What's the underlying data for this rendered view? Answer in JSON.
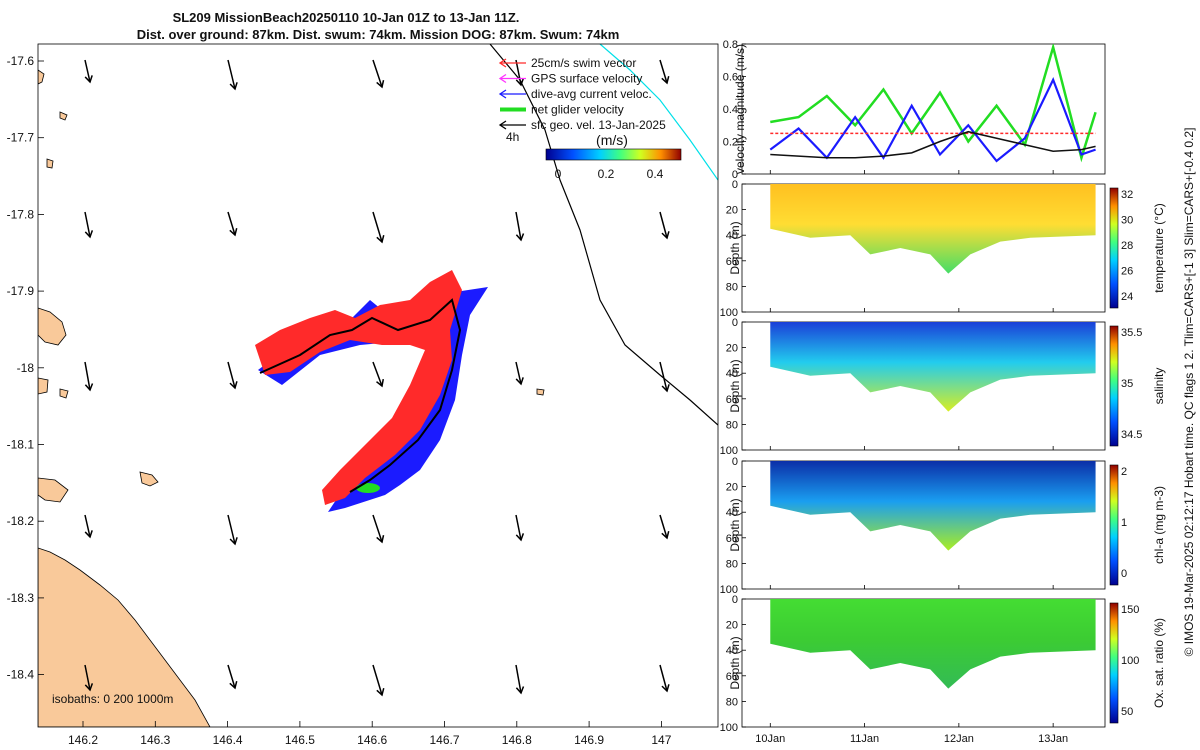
{
  "colors": {
    "land": "#f9c99a",
    "swim": "#ff2a2a",
    "gps": "#ff33ff",
    "dive": "#1b1bff",
    "net": "#22dd22",
    "geo": "#000000",
    "coast_line": "#00e0e8",
    "boundary_line": "#000000"
  },
  "map": {
    "title_line1": "SL209 MissionBeach20250110 10-Jan 01Z to 13-Jan 11Z.",
    "title_line2": "Dist. over ground: 87km. Dist. swum: 74km. Mission DOG: 87km. Swum: 74km",
    "x_ticks": [
      "146.2",
      "146.3",
      "146.4",
      "146.5",
      "146.6",
      "146.7",
      "146.8",
      "146.9",
      "147"
    ],
    "y_ticks": [
      "-17.6",
      "-17.7",
      "-17.8",
      "-17.9",
      "-18",
      "-18.1",
      "-18.2",
      "-18.3",
      "-18.4"
    ],
    "legend": [
      {
        "key": "swim",
        "label": "25cm/s swim vector"
      },
      {
        "key": "gps",
        "label": "GPS surface velocity"
      },
      {
        "key": "dive",
        "label": "dive-avg current veloc."
      },
      {
        "key": "net",
        "label": "net glider velocity"
      },
      {
        "key": "geo",
        "label": "sfc geo. vel. 13-Jan-2025"
      }
    ],
    "ref_arrow_label": "4h",
    "colorbar_title": "(m/s)",
    "colorbar_ticks": [
      "0",
      "0.2",
      "0.4"
    ],
    "isobaths_label": "isobaths: 0   200  1000m"
  },
  "chart_data": [
    {
      "type": "line",
      "title": "",
      "xlabel": "",
      "ylabel": "velocity magnitude (m/s)",
      "ylim": [
        0,
        0.8
      ],
      "yticks": [
        "0",
        "0.2",
        "0.4",
        "0.6",
        "0.8"
      ],
      "x_days": [
        10.0,
        10.3,
        10.6,
        10.9,
        11.2,
        11.5,
        11.8,
        12.1,
        12.4,
        12.7,
        13.0,
        13.3,
        13.45
      ],
      "series": [
        {
          "name": "net glider velocity",
          "color": "#22dd22",
          "values": [
            0.32,
            0.35,
            0.48,
            0.3,
            0.52,
            0.25,
            0.5,
            0.2,
            0.42,
            0.18,
            0.78,
            0.1,
            0.38
          ]
        },
        {
          "name": "dive-avg current veloc.",
          "color": "#1b1bff",
          "values": [
            0.15,
            0.28,
            0.1,
            0.35,
            0.1,
            0.42,
            0.12,
            0.3,
            0.08,
            0.22,
            0.58,
            0.12,
            0.15
          ]
        },
        {
          "name": "25cm/s swim vector",
          "color": "#ff2a2a",
          "values": [
            0.25,
            0.25,
            0.25,
            0.25,
            0.25,
            0.25,
            0.25,
            0.25,
            0.25,
            0.25,
            0.25,
            0.25,
            0.25
          ]
        },
        {
          "name": "sfc geo. vel.",
          "color": "#111111",
          "values": [
            0.12,
            0.11,
            0.1,
            0.1,
            0.11,
            0.13,
            0.2,
            0.26,
            0.22,
            0.18,
            0.14,
            0.15,
            0.17
          ]
        }
      ]
    },
    {
      "type": "heatmap",
      "ylabel": "Depth (m)",
      "yticks": [
        "0",
        "20",
        "40",
        "60",
        "80",
        "100"
      ],
      "colorbar_label": "temperature (°C)",
      "colorbar_ticks": [
        "32",
        "30",
        "28",
        "26",
        "24"
      ],
      "surface_value": 30,
      "deep_value": 27
    },
    {
      "type": "heatmap",
      "ylabel": "Depth (m)",
      "yticks": [
        "0",
        "20",
        "40",
        "60",
        "80",
        "100"
      ],
      "colorbar_label": "salinity",
      "colorbar_ticks": [
        "35.5",
        "35",
        "34.5"
      ],
      "surface_value": 34.6,
      "deep_value": 35.2
    },
    {
      "type": "heatmap",
      "ylabel": "Depth (m)",
      "yticks": [
        "0",
        "20",
        "40",
        "60",
        "80",
        "100"
      ],
      "colorbar_label": "chl-a (mg m-3)",
      "colorbar_ticks": [
        "2",
        "1",
        "0"
      ],
      "surface_value": 0.2,
      "deep_value": 0.9
    },
    {
      "type": "heatmap",
      "ylabel": "Depth (m)",
      "yticks": [
        "0",
        "20",
        "40",
        "60",
        "80",
        "100"
      ],
      "colorbar_label": "Ox. sat. ratio (%)",
      "colorbar_ticks": [
        "150",
        "100",
        "50"
      ],
      "surface_value": 110,
      "deep_value": 105
    }
  ],
  "time_axis": {
    "ticks": [
      "10Jan",
      "11Jan",
      "12Jan",
      "13Jan"
    ]
  },
  "side_note": "© IMOS 19-Mar-2025 02:12:17 Hobart time. QC flags 1  2. Tlim=CARS+[-1 3] Slim=CARS+[-0.4 0.2]"
}
